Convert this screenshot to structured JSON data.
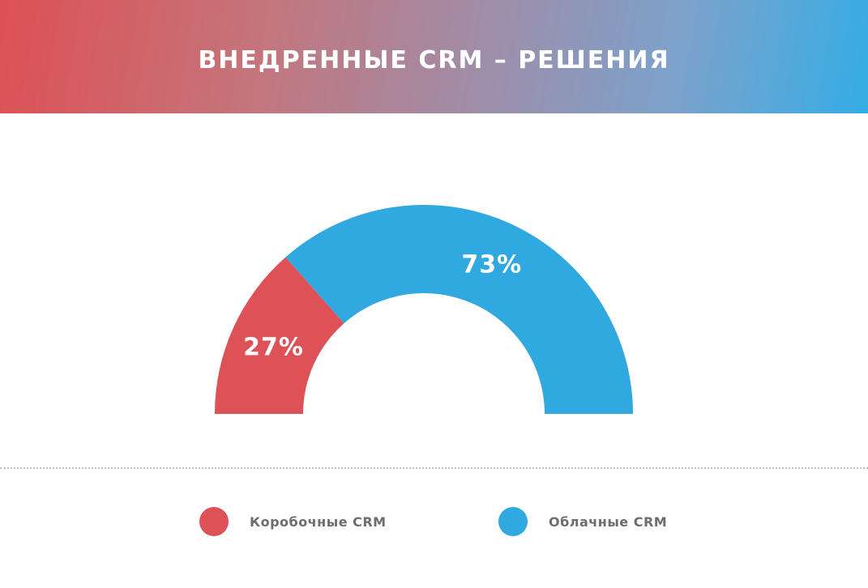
{
  "header": {
    "title": "ВНЕДРЕННЫЕ CRM – РЕШЕНИЯ"
  },
  "colors": {
    "boxed": "#de5157",
    "cloud": "#30a9e1"
  },
  "chart_data": {
    "type": "pie",
    "variant": "half-donut",
    "title": "ВНЕДРЕННЫЕ CRM – РЕШЕНИЯ",
    "series": [
      {
        "name": "Коробочные CRM",
        "value": 27,
        "label": "27%",
        "color": "#de5157"
      },
      {
        "name": "Облачные CRM",
        "value": 73,
        "label": "73%",
        "color": "#30a9e1"
      }
    ],
    "legend_position": "bottom"
  },
  "legend": [
    {
      "label": "Коробочные CRM",
      "color": "#de5157"
    },
    {
      "label": "Облачные CRM",
      "color": "#30a9e1"
    }
  ]
}
